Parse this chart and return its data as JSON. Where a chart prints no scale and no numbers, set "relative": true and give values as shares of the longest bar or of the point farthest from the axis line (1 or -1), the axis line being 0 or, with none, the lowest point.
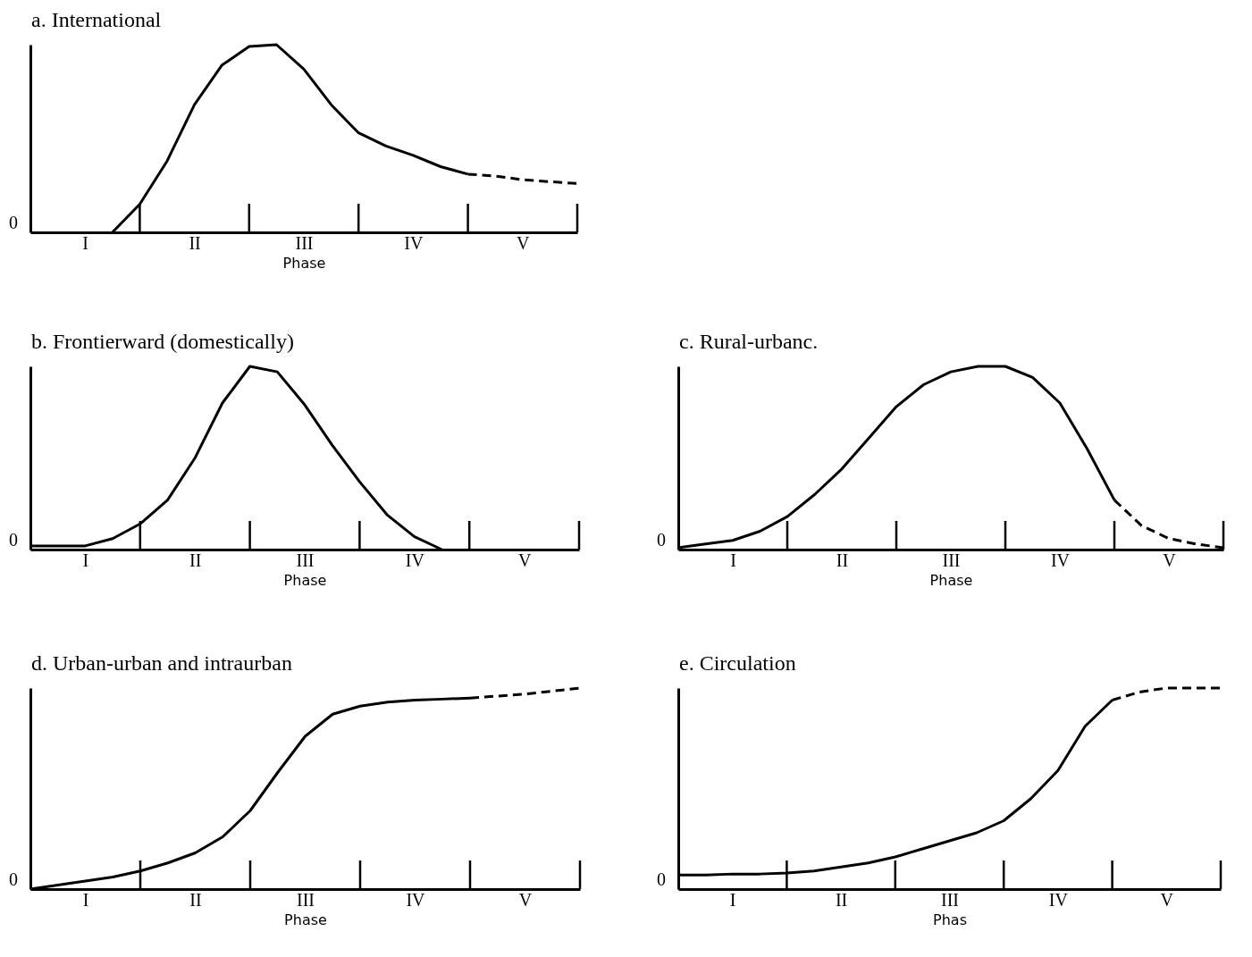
{
  "chart_data": [
    {
      "type": "line",
      "title": "a. International",
      "xlabel": "Phase",
      "relative": true,
      "categories": [
        null,
        null,
        "I",
        null,
        null,
        null,
        "II",
        null,
        null,
        null,
        "III",
        null,
        null,
        null,
        "IV",
        null,
        null,
        null,
        "V",
        null,
        null
      ],
      "annotations": [
        "0"
      ],
      "grid": false,
      "marker": "none",
      "series": [
        {
          "color": "#000000",
          "line_style": "solid",
          "values": [
            null,
            null,
            null,
            0,
            0.15,
            0.38,
            0.68,
            0.89,
            0.99,
            1,
            0.87,
            0.68,
            0.53,
            0.46,
            0.41,
            0.35,
            0.31,
            null,
            null,
            null,
            null
          ]
        },
        {
          "color": "#000000",
          "line_style": "dashed",
          "values": [
            null,
            null,
            null,
            null,
            null,
            null,
            null,
            null,
            null,
            null,
            null,
            null,
            null,
            null,
            null,
            null,
            0.31,
            0.3,
            0.28,
            0.27,
            0.26
          ]
        }
      ]
    },
    {
      "type": "line",
      "title": "b. Frontierward (domestically)",
      "xlabel": "Phase",
      "relative": true,
      "categories": [
        null,
        null,
        "I",
        null,
        null,
        null,
        "II",
        null,
        null,
        null,
        "III",
        null,
        null,
        null,
        "IV",
        null,
        null,
        null,
        "V",
        null,
        null
      ],
      "annotations": [
        "0"
      ],
      "grid": false,
      "marker": "none",
      "series": [
        {
          "color": "#000000",
          "line_style": "solid",
          "values": [
            0.02,
            0.02,
            0.02,
            0.06,
            0.14,
            0.27,
            0.5,
            0.8,
            1,
            0.97,
            0.79,
            0.57,
            0.37,
            0.19,
            0.07,
            0,
            null,
            null,
            null,
            null,
            null
          ]
        }
      ]
    },
    {
      "type": "line",
      "title": "c. Rural-urbanc.",
      "xlabel": "Phase",
      "relative": true,
      "categories": [
        null,
        null,
        "I",
        null,
        null,
        null,
        "II",
        null,
        null,
        null,
        "III",
        null,
        null,
        null,
        "IV",
        null,
        null,
        null,
        "V",
        null,
        null
      ],
      "annotations": [
        "0"
      ],
      "grid": false,
      "marker": "none",
      "series": [
        {
          "color": "#000000",
          "line_style": "solid",
          "values": [
            0.01,
            0.03,
            0.05,
            0.1,
            0.18,
            0.3,
            0.44,
            0.61,
            0.78,
            0.9,
            0.97,
            1,
            1,
            0.94,
            0.8,
            0.55,
            0.27,
            null,
            null,
            null,
            null
          ]
        },
        {
          "color": "#000000",
          "line_style": "dashed",
          "values": [
            null,
            null,
            null,
            null,
            null,
            null,
            null,
            null,
            null,
            null,
            null,
            null,
            null,
            null,
            null,
            null,
            0.27,
            0.13,
            0.06,
            0.03,
            0.01
          ]
        }
      ]
    },
    {
      "type": "line",
      "title": "d. Urban-urban and intraurban",
      "xlabel": "Phase",
      "relative": true,
      "categories": [
        null,
        null,
        "I",
        null,
        null,
        null,
        "II",
        null,
        null,
        null,
        "III",
        null,
        null,
        null,
        "IV",
        null,
        null,
        null,
        "V",
        null,
        null
      ],
      "annotations": [
        "0"
      ],
      "grid": false,
      "marker": "none",
      "series": [
        {
          "color": "#000000",
          "line_style": "solid",
          "values": [
            0,
            0.02,
            0.04,
            0.06,
            0.09,
            0.13,
            0.18,
            0.26,
            0.39,
            0.58,
            0.76,
            0.87,
            0.91,
            0.93,
            0.94,
            0.945,
            0.95,
            null,
            null,
            null,
            null
          ]
        },
        {
          "color": "#000000",
          "line_style": "dashed",
          "values": [
            null,
            null,
            null,
            null,
            null,
            null,
            null,
            null,
            null,
            null,
            null,
            null,
            null,
            null,
            null,
            null,
            0.95,
            0.96,
            0.97,
            0.985,
            1
          ]
        }
      ]
    },
    {
      "type": "line",
      "title": "e. Circulation",
      "xlabel": "Phas",
      "relative": true,
      "categories": [
        null,
        null,
        "I",
        null,
        null,
        null,
        "II",
        null,
        null,
        null,
        "III",
        null,
        null,
        null,
        "IV",
        null,
        null,
        null,
        "V",
        null,
        null
      ],
      "annotations": [
        "0"
      ],
      "grid": false,
      "marker": "none",
      "series": [
        {
          "color": "#000000",
          "line_style": "solid",
          "values": [
            0.07,
            0.07,
            0.075,
            0.075,
            0.08,
            0.09,
            0.11,
            0.13,
            0.16,
            0.2,
            0.24,
            0.28,
            0.34,
            0.45,
            0.59,
            0.81,
            0.94,
            null,
            null,
            null,
            null
          ]
        },
        {
          "color": "#000000",
          "line_style": "dashed",
          "values": [
            null,
            null,
            null,
            null,
            null,
            null,
            null,
            null,
            null,
            null,
            null,
            null,
            null,
            null,
            null,
            null,
            0.94,
            0.98,
            1,
            1,
            1
          ]
        }
      ]
    }
  ]
}
